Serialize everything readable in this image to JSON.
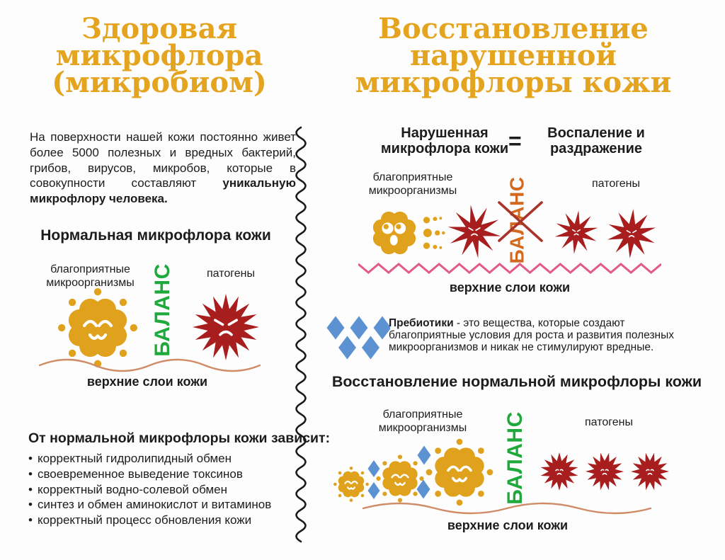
{
  "colors": {
    "gold": "#E4A41F",
    "text": "#1C1C1C",
    "microbe_yellow": "#E0A11C",
    "pathogen_red": "#A81D1D",
    "balance_green": "#1FA93C",
    "balance_orange": "#D2691E",
    "cross_red": "#A8342A",
    "zigzag_pink": "#E25A87",
    "skin_wave_salmon": "#CF8C67",
    "diamond_blue": "#5C92D2",
    "divider_black": "#1A1A1A"
  },
  "icons": {
    "beneficial_microbe": "happy-microbe-icon",
    "disturbed_microbe": "scared-microbe-icon",
    "pathogen": "spiky-pathogen-icon",
    "prebiotic": "blue-diamond-icon"
  },
  "bullet_char": "•",
  "left": {
    "title": "Здоровая микрофлора (микробиом)",
    "intro_regular": "На поверхности нашей кожи постоянно живет более 5000 полезных и вредных бактерий, грибов, вирусов, микробов, которые в совокупности составляют ",
    "intro_bold": "уникальную микрофлору человека.",
    "section_heading": "Нормальная микрофлора кожи",
    "label_beneficial": "благоприятные микроорганизмы",
    "label_pathogens": "патогены",
    "balance": "БАЛАНС",
    "skin_layers": "верхние слои кожи",
    "depends_heading": "От нормальной микрофлоры кожи зависит:",
    "depends_items": [
      "корректный гидролипидный обмен",
      "своевременное выведение токсинов",
      "корректный водно-солевой обмен",
      "синтез и обмен аминокислот и витаминов",
      "корректный процесс обновления кожи"
    ]
  },
  "right": {
    "title": "Восстановление нарушенной микрофлоры кожи",
    "disturbed_label": "Нарушенная микрофлора кожи",
    "equals": "=",
    "result_label": "Воспаление и раздражение",
    "label_beneficial": "благоприятные микроорганизмы",
    "label_pathogens": "патогены",
    "balance_broken": "БАЛАНС",
    "skin_layers_top": "верхние слои кожи",
    "prebiotics_bold": "Пребиотики",
    "prebiotics_text": " - это вещества, которые создают благоприятные условия для роста и развития полезных микроорганизмов и никак не стимулируют вредные.",
    "restore_heading": "Восстановление нормальной микрофлоры кожи",
    "label_beneficial2": "благоприятные микроорганизмы",
    "label_pathogens2": "патогены",
    "balance_restored": "БАЛАНС",
    "skin_layers_bottom": "верхние слои кожи"
  }
}
